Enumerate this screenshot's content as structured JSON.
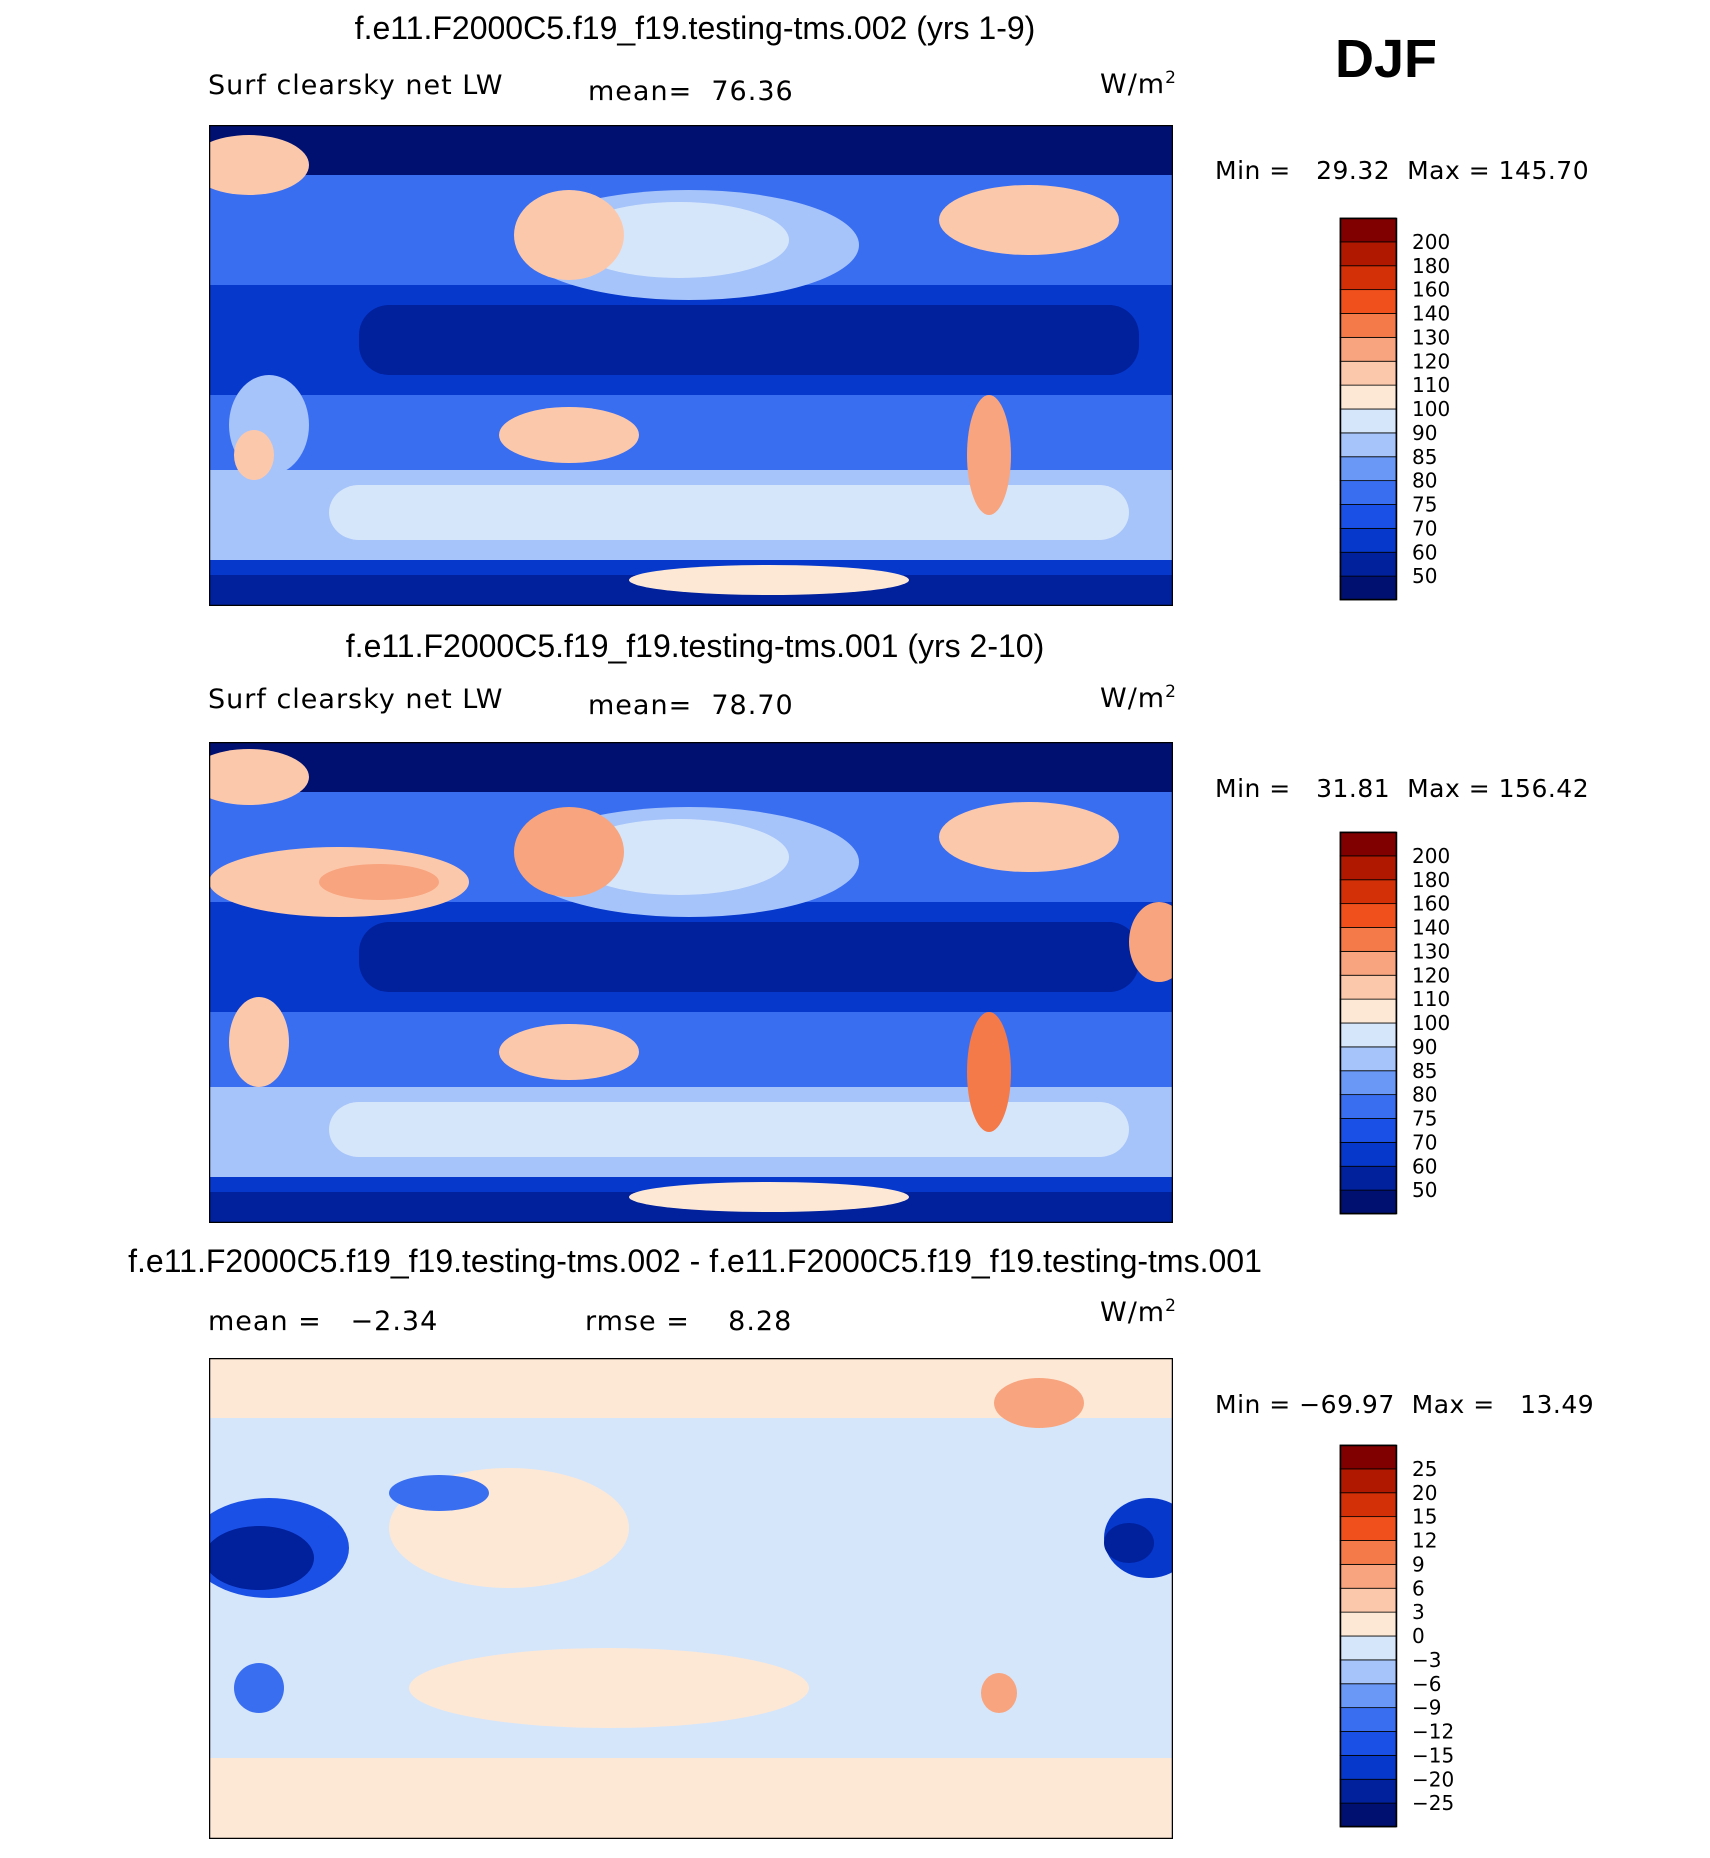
{
  "season": "DJF",
  "units_base": "W/m",
  "units_exp": "2",
  "panels": [
    {
      "title": "f.e11.F2000C5.f19_f19.testing-tms.002 (yrs 1-9)",
      "left_label": "Surf clearsky net LW",
      "stat_label": "mean=",
      "stat_value": "76.36",
      "min_label": "Min =",
      "min_value": "29.32",
      "max_label": "Max =",
      "max_value": "145.70"
    },
    {
      "title": "f.e11.F2000C5.f19_f19.testing-tms.001 (yrs 2-10)",
      "left_label": "Surf clearsky net LW",
      "stat_label": "mean=",
      "stat_value": "78.70",
      "min_label": "Min =",
      "min_value": "31.81",
      "max_label": "Max =",
      "max_value": "156.42"
    },
    {
      "title": "f.e11.F2000C5.f19_f19.testing-tms.002 - f.e11.F2000C5.f19_f19.testing-tms.001",
      "left_label": "mean =",
      "left_value": "−2.34",
      "stat_label": "rmse =",
      "stat_value": "8.28",
      "min_label": "Min =",
      "min_value": "−69.97",
      "max_label": "Max =",
      "max_value": "13.49"
    }
  ],
  "chart_data": [
    {
      "type": "heatmap",
      "title": "f.e11.F2000C5.f19_f19.testing-tms.002 (yrs 1-9)",
      "variable": "Surf clearsky net LW",
      "units": "W/m2",
      "mean": 76.36,
      "min": 29.32,
      "max": 145.7,
      "levels": [
        50,
        60,
        70,
        75,
        80,
        85,
        90,
        100,
        110,
        120,
        130,
        140,
        160,
        180,
        200
      ],
      "colors": [
        "#001070",
        "#00209c",
        "#0638cc",
        "#1a50e6",
        "#3a6ef0",
        "#6a98f6",
        "#a6c4fa",
        "#d6e6fa",
        "#fde8d6",
        "#fcc8ac",
        "#f8a47e",
        "#f47a4a",
        "#f0501c",
        "#d43008",
        "#b01800",
        "#800000"
      ]
    },
    {
      "type": "heatmap",
      "title": "f.e11.F2000C5.f19_f19.testing-tms.001 (yrs 2-10)",
      "variable": "Surf clearsky net LW",
      "units": "W/m2",
      "mean": 78.7,
      "min": 31.81,
      "max": 156.42,
      "levels": [
        50,
        60,
        70,
        75,
        80,
        85,
        90,
        100,
        110,
        120,
        130,
        140,
        160,
        180,
        200
      ],
      "colors": [
        "#001070",
        "#00209c",
        "#0638cc",
        "#1a50e6",
        "#3a6ef0",
        "#6a98f6",
        "#a6c4fa",
        "#d6e6fa",
        "#fde8d6",
        "#fcc8ac",
        "#f8a47e",
        "#f47a4a",
        "#f0501c",
        "#d43008",
        "#b01800",
        "#800000"
      ]
    },
    {
      "type": "heatmap",
      "title": "f.e11.F2000C5.f19_f19.testing-tms.002 - f.e11.F2000C5.f19_f19.testing-tms.001",
      "units": "W/m2",
      "mean": -2.34,
      "rmse": 8.28,
      "min": -69.97,
      "max": 13.49,
      "levels": [
        -25,
        -20,
        -15,
        -12,
        -9,
        -6,
        -3,
        0,
        3,
        6,
        9,
        12,
        15,
        20,
        25
      ],
      "colors": [
        "#001070",
        "#00209c",
        "#0638cc",
        "#1a50e6",
        "#3a6ef0",
        "#6a98f6",
        "#a6c4fa",
        "#d6e6fa",
        "#fde8d6",
        "#fcc8ac",
        "#f8a47e",
        "#f47a4a",
        "#f0501c",
        "#d43008",
        "#b01800",
        "#800000"
      ]
    }
  ]
}
